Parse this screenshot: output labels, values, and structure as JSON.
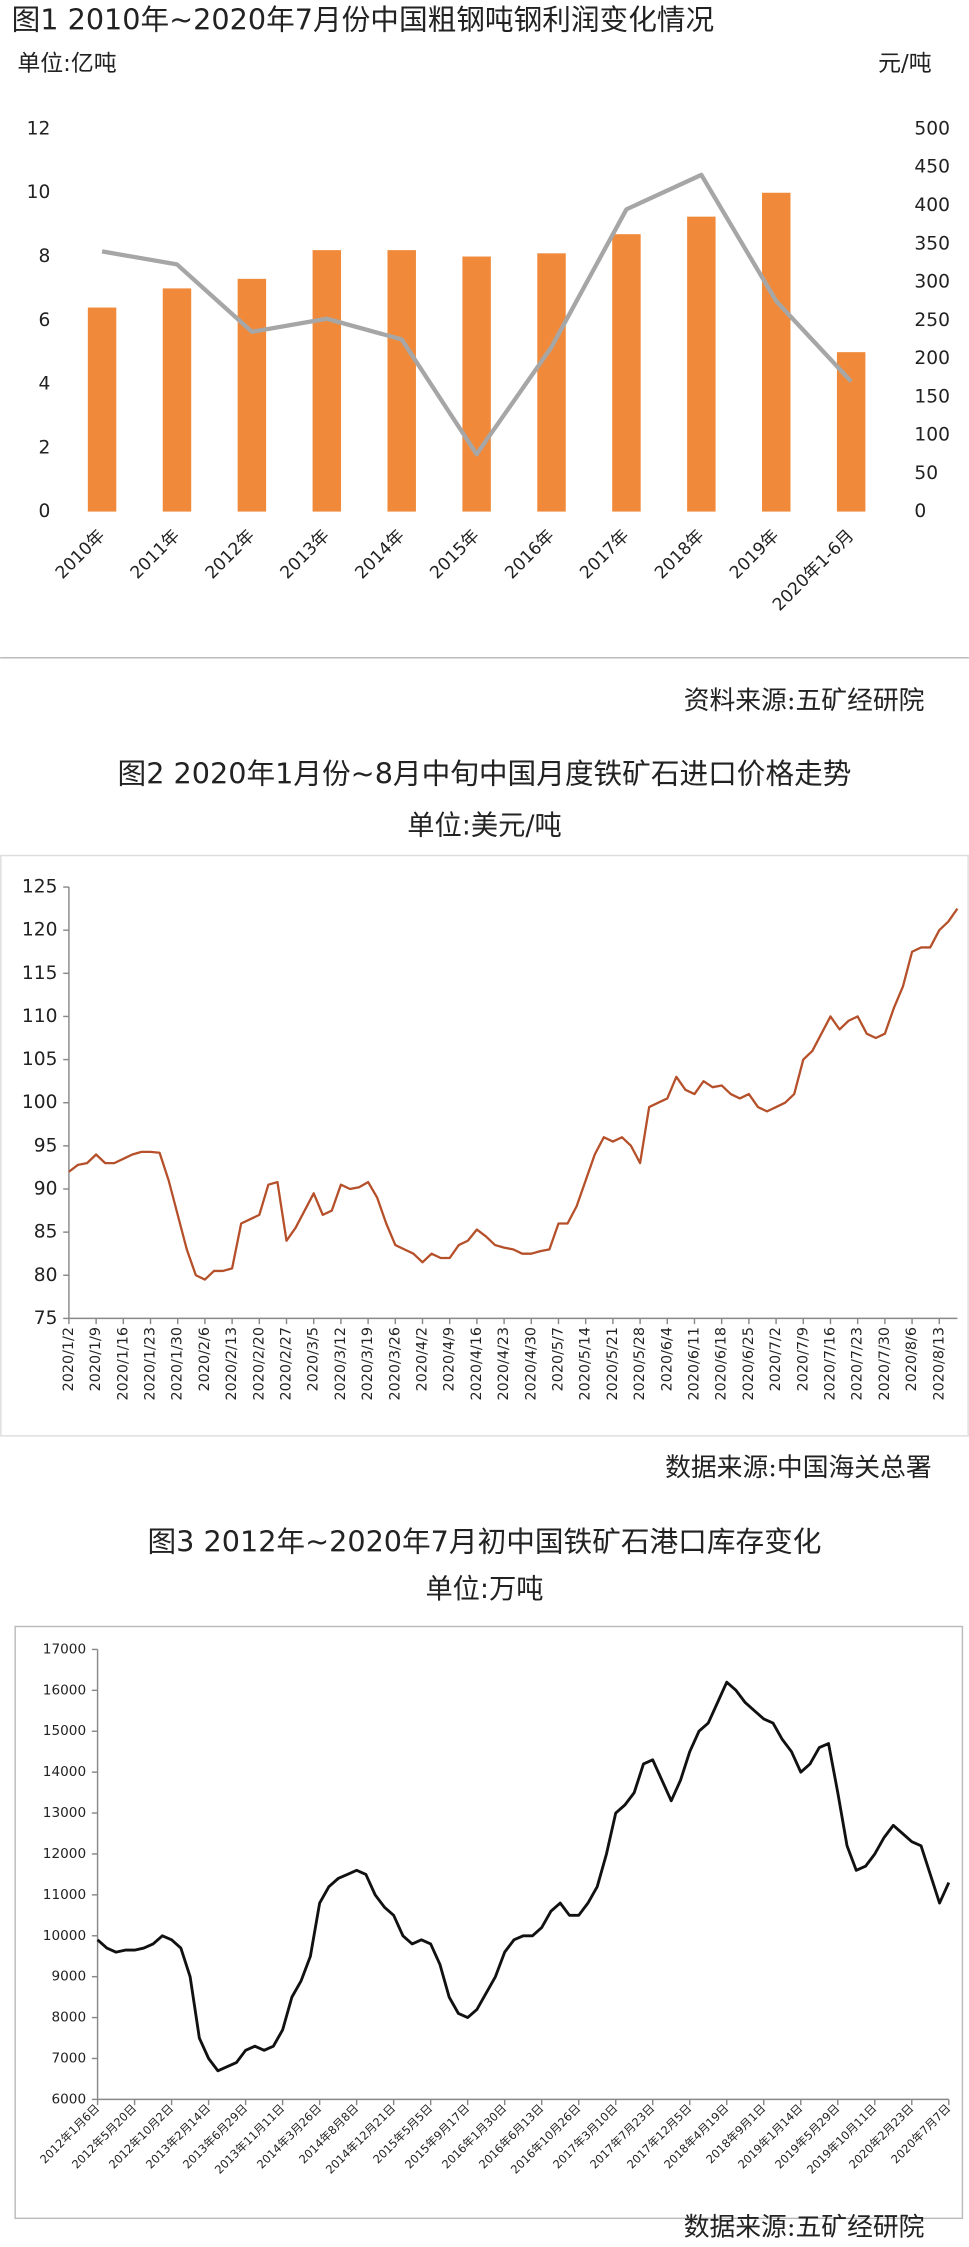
{
  "chart_data": [
    {
      "type": "bar",
      "title": "图1 2010年~2020年7月份中国粗钢吨钢利润变化情况",
      "ylabel": "单位:亿吨",
      "y2label": "元/吨",
      "source": "资料来源:五矿经研院",
      "categories": [
        "2010年",
        "2011年",
        "2012年",
        "2013年",
        "2014年",
        "2015年",
        "2016年",
        "2017年",
        "2018年",
        "2019年",
        "2020年1-6月"
      ],
      "series": [
        {
          "type": "bar",
          "color": "#f08a3a",
          "values": [
            6.4,
            7.0,
            7.3,
            8.2,
            8.2,
            8.0,
            8.1,
            8.7,
            9.25,
            10.0,
            5.0
          ]
        },
        {
          "type": "line",
          "axis": "y2",
          "color": "#a6a6a6",
          "values": [
            340,
            323,
            235,
            252,
            225,
            75,
            215,
            395,
            440,
            275,
            170
          ]
        }
      ],
      "ylim": [
        0,
        12
      ],
      "yticks": [
        0,
        2,
        4,
        6,
        8,
        10,
        12
      ],
      "y2lim": [
        0,
        500
      ],
      "y2ticks": [
        0,
        50,
        100,
        150,
        200,
        250,
        300,
        350,
        400,
        450,
        500
      ],
      "grid": false
    },
    {
      "type": "line",
      "title": "图2 2020年1月份~8月中旬中国月度铁矿石进口价格走势",
      "subtitle": "单位:美元/吨",
      "source": "数据来源:中国海关总署",
      "categories": [
        "2020/1/2",
        null,
        null,
        "2020/1/9",
        null,
        null,
        "2020/1/16",
        null,
        null,
        "2020/1/23",
        null,
        null,
        "2020/1/30",
        null,
        null,
        "2020/2/6",
        null,
        null,
        "2020/2/13",
        null,
        null,
        "2020/2/20",
        null,
        null,
        "2020/2/27",
        null,
        null,
        "2020/3/5",
        null,
        null,
        "2020/3/12",
        null,
        null,
        "2020/3/19",
        null,
        null,
        "2020/3/26",
        null,
        null,
        "2020/4/2",
        null,
        null,
        "2020/4/9",
        null,
        null,
        "2020/4/16",
        null,
        null,
        "2020/4/23",
        null,
        null,
        "2020/4/30",
        null,
        null,
        "2020/5/7",
        null,
        null,
        "2020/5/14",
        null,
        null,
        "2020/5/21",
        null,
        null,
        "2020/5/28",
        null,
        null,
        "2020/6/4",
        null,
        null,
        "2020/6/11",
        null,
        null,
        "2020/6/18",
        null,
        null,
        "2020/6/25",
        null,
        null,
        "2020/7/2",
        null,
        null,
        "2020/7/9",
        null,
        null,
        "2020/7/16",
        null,
        null,
        "2020/7/23",
        null,
        null,
        "2020/7/30",
        null,
        null,
        "2020/8/6",
        null,
        null,
        "2020/8/13",
        null,
        null
      ],
      "series": [
        {
          "color": "#b5502a",
          "values": [
            92,
            92.8,
            93,
            94,
            93,
            93,
            93.5,
            94,
            94.3,
            94.3,
            94.2,
            91,
            87,
            83,
            80,
            79.5,
            80.5,
            80.5,
            80.8,
            86,
            86.5,
            87,
            90.5,
            90.8,
            84,
            85.5,
            87.5,
            89.5,
            87,
            87.5,
            90.5,
            90,
            90.2,
            90.8,
            89,
            86,
            83.5,
            83,
            82.5,
            81.5,
            82.5,
            82,
            82,
            83.5,
            84,
            85.3,
            84.5,
            83.5,
            83.2,
            83,
            82.5,
            82.5,
            82.8,
            83,
            86,
            86,
            88,
            91,
            94,
            96,
            95.5,
            96,
            95,
            93,
            99.5,
            100,
            100.5,
            103,
            101.5,
            101,
            102.5,
            101.8,
            102,
            101,
            100.5,
            101,
            99.5,
            99,
            99.5,
            100,
            101,
            105,
            106,
            108,
            110,
            108.5,
            109.5,
            110,
            108,
            107.5,
            108,
            111,
            113.5,
            117.5,
            118,
            118,
            120,
            121,
            122.5
          ]
        }
      ],
      "ylim": [
        75,
        125
      ],
      "yticks": [
        75,
        80,
        85,
        90,
        95,
        100,
        105,
        110,
        115,
        120,
        125
      ],
      "grid": false
    },
    {
      "type": "line",
      "title": "图3 2012年~2020年7月初中国铁矿石港口库存变化",
      "subtitle": "单位:万吨",
      "source": "数据来源:五矿经研院",
      "categories": [
        "2012年1月6日",
        null,
        null,
        null,
        "2012年5月20日",
        null,
        null,
        null,
        "2012年10月2日",
        null,
        null,
        null,
        "2013年2月14日",
        null,
        null,
        null,
        "2013年6月29日",
        null,
        null,
        null,
        "2013年11月11日",
        null,
        null,
        null,
        "2014年3月26日",
        null,
        null,
        null,
        "2014年8月8日",
        null,
        null,
        null,
        "2014年12月21日",
        null,
        null,
        null,
        "2015年5月5日",
        null,
        null,
        null,
        "2015年9月17日",
        null,
        null,
        null,
        "2016年1月30日",
        null,
        null,
        null,
        "2016年6月13日",
        null,
        null,
        null,
        "2016年10月26日",
        null,
        null,
        null,
        "2017年3月10日",
        null,
        null,
        null,
        "2017年7月23日",
        null,
        null,
        null,
        "2017年12月5日",
        null,
        null,
        null,
        "2018年4月19日",
        null,
        null,
        null,
        "2018年9月1日",
        null,
        null,
        null,
        "2019年1月14日",
        null,
        null,
        null,
        "2019年5月29日",
        null,
        null,
        null,
        "2019年10月11日",
        null,
        null,
        null,
        "2020年2月23日",
        null,
        null,
        null,
        "2020年7月7日"
      ],
      "series": [
        {
          "color": "#111111",
          "values": [
            9900,
            9700,
            9600,
            9650,
            9650,
            9700,
            9800,
            10000,
            9900,
            9700,
            9000,
            7500,
            7000,
            6700,
            6800,
            6900,
            7200,
            7300,
            7200,
            7300,
            7700,
            8500,
            8900,
            9500,
            10800,
            11200,
            11400,
            11500,
            11600,
            11500,
            11000,
            10700,
            10500,
            10000,
            9800,
            9900,
            9800,
            9300,
            8500,
            8100,
            8000,
            8200,
            8600,
            9000,
            9600,
            9900,
            10000,
            10000,
            10200,
            10600,
            10800,
            10500,
            10500,
            10800,
            11200,
            12000,
            13000,
            13200,
            13500,
            14200,
            14300,
            13800,
            13300,
            13800,
            14500,
            15000,
            15200,
            15700,
            16200,
            16000,
            15700,
            15500,
            15300,
            15200,
            14800,
            14500,
            14000,
            14200,
            14600,
            14700,
            13500,
            12200,
            11600,
            11700,
            12000,
            12400,
            12700,
            12500,
            12300,
            12200,
            11500,
            10800,
            11300
          ]
        }
      ],
      "ylim": [
        6000,
        17000
      ],
      "yticks": [
        6000,
        7000,
        8000,
        9000,
        10000,
        11000,
        12000,
        13000,
        14000,
        15000,
        16000,
        17000
      ],
      "grid": false
    }
  ]
}
